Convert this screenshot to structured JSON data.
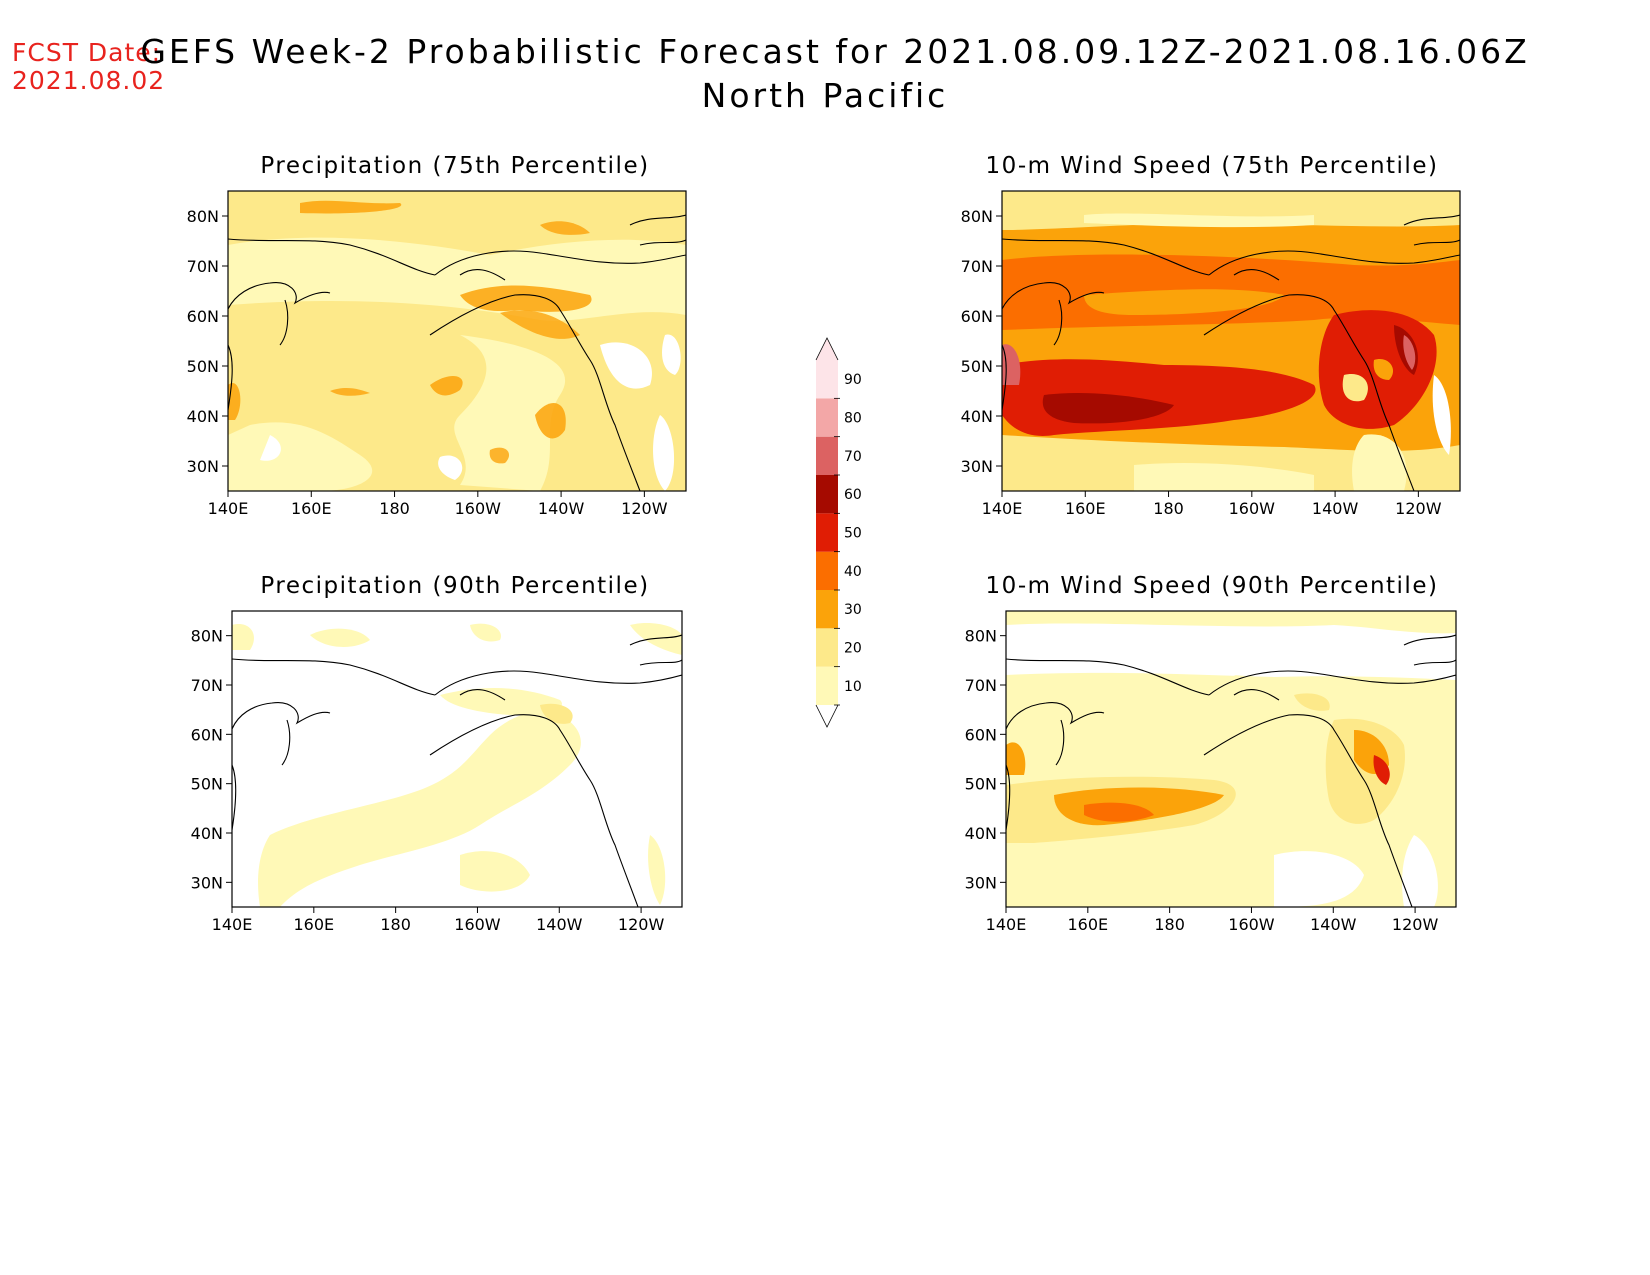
{
  "header": {
    "fcst_label": "FCST Date:",
    "fcst_date": "2021.08.02",
    "title": "GEFS Week-2 Probabilistic Forecast for 2021.08.09.12Z-2021.08.16.06Z",
    "region": "North Pacific"
  },
  "axes": {
    "lon_labels": [
      "140E",
      "160E",
      "180",
      "160W",
      "140W",
      "120W"
    ],
    "lat_labels": [
      "80N",
      "70N",
      "60N",
      "50N",
      "40N",
      "30N"
    ]
  },
  "colorbar": {
    "levels": [
      "10",
      "20",
      "30",
      "40",
      "50",
      "60",
      "70",
      "80",
      "90"
    ],
    "colors": [
      "#fff9b7",
      "#fde98a",
      "#fba30a",
      "#fb6e00",
      "#e01d04",
      "#a50a00",
      "#dc6262",
      "#f3a7a7",
      "#fde4e8"
    ]
  },
  "panels": [
    {
      "id": "precip75",
      "title": "Precipitation (75th Percentile)"
    },
    {
      "id": "wind75",
      "title": "10-m Wind Speed (75th Percentile)"
    },
    {
      "id": "precip90",
      "title": "Precipitation (90th Percentile)"
    },
    {
      "id": "wind90",
      "title": "10-m Wind Speed (90th Percentile)"
    }
  ]
}
